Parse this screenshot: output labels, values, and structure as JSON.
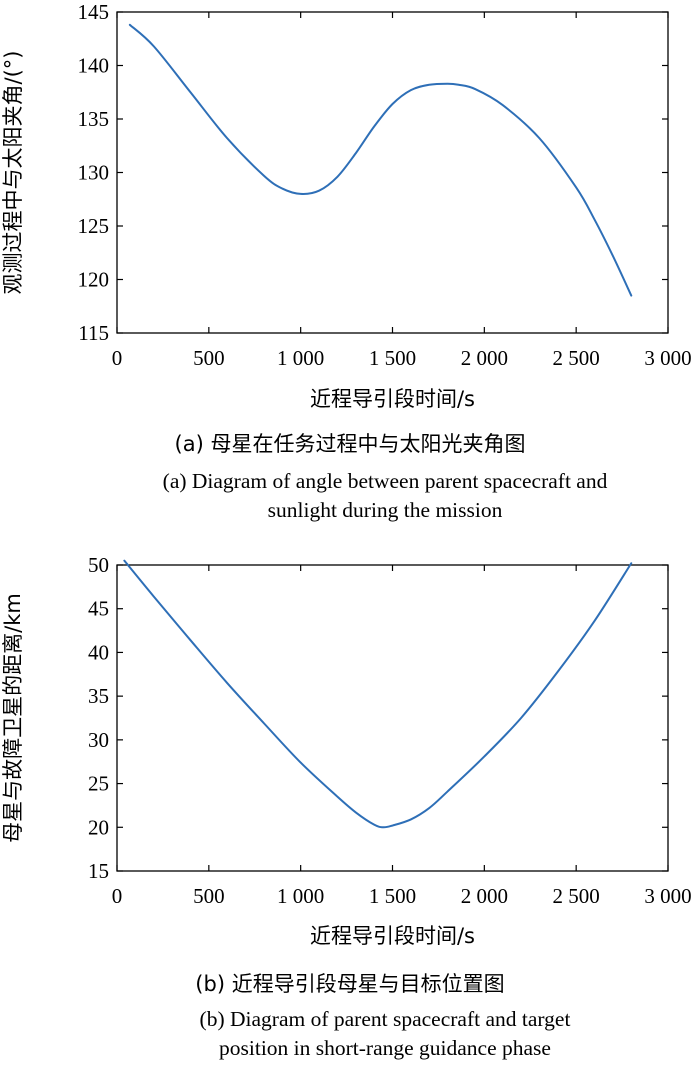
{
  "chart_data": [
    {
      "type": "line",
      "xlabel": "近程导引段时间/s",
      "ylabel": "观测过程中与太阳夹角/(°)",
      "xlim": [
        0,
        3000
      ],
      "ylim": [
        115,
        145
      ],
      "xticks": [
        0,
        500,
        1000,
        1500,
        2000,
        2500,
        3000
      ],
      "xtick_labels": [
        "0",
        "500",
        "1 000",
        "1 500",
        "2 000",
        "2 500",
        "3 000"
      ],
      "yticks": [
        115,
        120,
        125,
        130,
        135,
        140,
        145
      ],
      "ytick_labels": [
        "115",
        "120",
        "125",
        "130",
        "135",
        "140",
        "145"
      ],
      "grid": false,
      "color": "#2e6fb7",
      "series": [
        {
          "x": [
            70,
            200,
            400,
            600,
            800,
            900,
            1000,
            1100,
            1200,
            1300,
            1400,
            1500,
            1600,
            1700,
            1800,
            1860,
            1950,
            2100,
            2300,
            2500,
            2600,
            2700,
            2800
          ],
          "values": [
            143.8,
            141.8,
            137.5,
            133.2,
            129.7,
            128.5,
            128.0,
            128.3,
            129.6,
            131.8,
            134.3,
            136.4,
            137.7,
            138.2,
            138.3,
            138.2,
            137.8,
            136.3,
            133.2,
            128.6,
            125.6,
            122.2,
            118.5
          ]
        }
      ],
      "caption_cn": "(a) 母星在任务过程中与太阳光夹角图",
      "caption_en": "(a) Diagram of angle between parent spacecraft and\nsunlight during the mission"
    },
    {
      "type": "line",
      "xlabel": "近程导引段时间/s",
      "ylabel": "母星与故障卫星的距离/km",
      "xlim": [
        0,
        3000
      ],
      "ylim": [
        15,
        50
      ],
      "xticks": [
        0,
        500,
        1000,
        1500,
        2000,
        2500,
        3000
      ],
      "xtick_labels": [
        "0",
        "500",
        "1 000",
        "1 500",
        "2 000",
        "2 500",
        "3 000"
      ],
      "yticks": [
        15,
        20,
        25,
        30,
        35,
        40,
        45,
        50
      ],
      "ytick_labels": [
        "15",
        "20",
        "25",
        "30",
        "35",
        "40",
        "45",
        "50"
      ],
      "grid": false,
      "color": "#2e6fb7",
      "series": [
        {
          "x": [
            40,
            200,
            400,
            600,
            800,
            1000,
            1200,
            1300,
            1400,
            1450,
            1500,
            1600,
            1700,
            1800,
            2000,
            2200,
            2400,
            2600,
            2800
          ],
          "values": [
            50.5,
            46.4,
            41.4,
            36.5,
            31.9,
            27.4,
            23.5,
            21.7,
            20.3,
            20.0,
            20.2,
            20.9,
            22.2,
            24.1,
            28.1,
            32.5,
            37.8,
            43.6,
            50.2
          ]
        }
      ],
      "caption_cn": "(b) 近程导引段母星与目标位置图",
      "caption_en": "(b) Diagram of parent spacecraft and target\nposition in short-range guidance phase"
    }
  ]
}
